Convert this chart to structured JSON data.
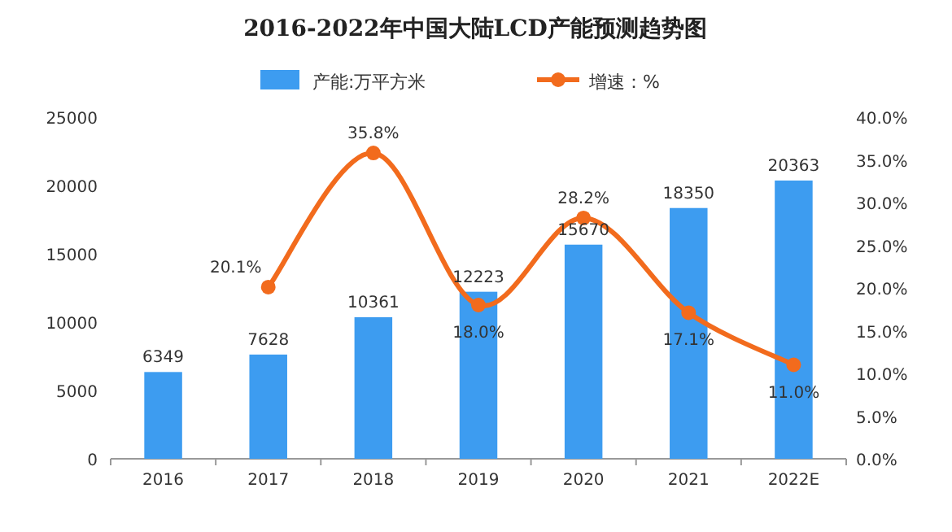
{
  "chart_data": {
    "type": "bar",
    "title": "2016-2022年中国大陆LCD产能预测趋势图",
    "categories": [
      "2016",
      "2017",
      "2018",
      "2019",
      "2020",
      "2021",
      "2022E"
    ],
    "series": [
      {
        "name": "产能:万平方米",
        "color": "#3d9cf0",
        "values": [
          6349,
          7628,
          10361,
          12223,
          15670,
          18350,
          20363
        ]
      },
      {
        "name": "增速：%",
        "type": "line",
        "axis": "y2",
        "color": "#f26b1d",
        "marker": "circle",
        "values": [
          null,
          20.1,
          35.8,
          18.0,
          28.2,
          17.1,
          11.0
        ],
        "value_labels": [
          null,
          "20.1%",
          "35.8%",
          "18.0%",
          "28.2%",
          "17.1%",
          "11.0%"
        ]
      }
    ],
    "data_labels": true,
    "legend": "top",
    "grid": false,
    "ylim": [
      0,
      25000
    ],
    "yticks": [
      0,
      5000,
      10000,
      15000,
      20000,
      25000
    ],
    "y2lim": [
      0,
      40
    ],
    "y2ticks": [
      {
        "value": 0,
        "label": "0.0%"
      },
      {
        "value": 5,
        "label": "5.0%"
      },
      {
        "value": 10,
        "label": "10.0%"
      },
      {
        "value": 15,
        "label": "15.0%"
      },
      {
        "value": 20,
        "label": "20.0%"
      },
      {
        "value": 25,
        "label": "25.0%"
      },
      {
        "value": 30,
        "label": "30.0%"
      },
      {
        "value": 35,
        "label": "35.0%"
      },
      {
        "value": 40,
        "label": "40.0%"
      }
    ]
  }
}
